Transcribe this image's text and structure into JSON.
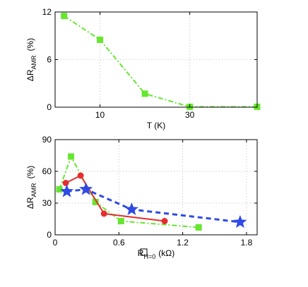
{
  "chart_data": [
    {
      "type": "line",
      "title": "",
      "xlabel": "T (K)",
      "ylabel": {
        "main": "ΔR",
        "sub": "AMR",
        "unit": "(%)"
      },
      "xlim": [
        0,
        45
      ],
      "ylim": [
        0,
        12
      ],
      "xticks": [
        10,
        30
      ],
      "yticks": [
        0,
        6,
        12
      ],
      "grid": "dotted",
      "legend": "none",
      "series": [
        {
          "color": "#66e62e",
          "line_style": "dash-dot",
          "marker": "square",
          "x": [
            2,
            10,
            20,
            30,
            45
          ],
          "y": [
            11.5,
            8.5,
            1.7,
            0.05,
            0.05
          ]
        }
      ]
    },
    {
      "type": "line",
      "title": "",
      "xlabel": {
        "main": "R",
        "sub": "H=0",
        "unit": "(kΩ)"
      },
      "ylabel": {
        "main": "ΔR",
        "sub": "AMR",
        "unit": "(%)"
      },
      "xlim": [
        0,
        1.9
      ],
      "ylim": [
        0,
        90
      ],
      "xticks": [
        0,
        0.6,
        1.2,
        1.8
      ],
      "yticks": [
        0,
        30,
        60,
        90
      ],
      "grid": "dotted",
      "legend": "none",
      "series": [
        {
          "color": "#66e62e",
          "line_style": "dash-dot",
          "marker": "square",
          "x": [
            0.04,
            0.15,
            0.38,
            0.62,
            1.35
          ],
          "y": [
            43,
            74,
            31,
            13,
            7
          ]
        },
        {
          "color": "#e62e2e",
          "line_style": "solid",
          "marker": "circle",
          "x": [
            0.1,
            0.24,
            0.46,
            1.03
          ],
          "y": [
            49,
            56,
            20,
            13
          ]
        },
        {
          "color": "#2e4ae6",
          "line_style": "dashed",
          "marker": "star",
          "x": [
            0.11,
            0.29,
            0.72,
            1.74
          ],
          "y": [
            41,
            43,
            24,
            12
          ]
        }
      ]
    }
  ]
}
